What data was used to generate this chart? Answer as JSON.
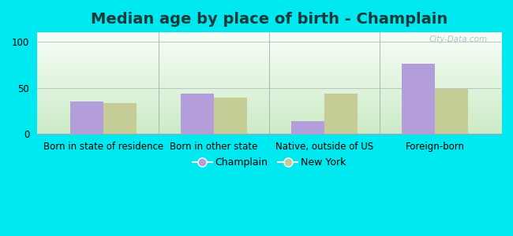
{
  "title": "Median age by place of birth - Champlain",
  "title_color": "#1a3a3a",
  "categories": [
    "Born in state of residence",
    "Born in other state",
    "Native, outside of US",
    "Foreign-born"
  ],
  "champlain_values": [
    35,
    44,
    14,
    76
  ],
  "newyork_values": [
    33,
    39,
    44,
    49
  ],
  "champlain_color": "#b39ddb",
  "newyork_color": "#c5cc96",
  "background_top": "#f0f8f0",
  "background_bottom": "#c8e6c0",
  "outer_background": "#00e8f0",
  "ylim": [
    0,
    110
  ],
  "yticks": [
    0,
    50,
    100
  ],
  "bar_width": 0.3,
  "legend_champlain": "Champlain",
  "legend_newyork": "New York",
  "title_fontsize": 14,
  "axis_label_fontsize": 8.5,
  "legend_fontsize": 9,
  "watermark": "City-Data.com"
}
